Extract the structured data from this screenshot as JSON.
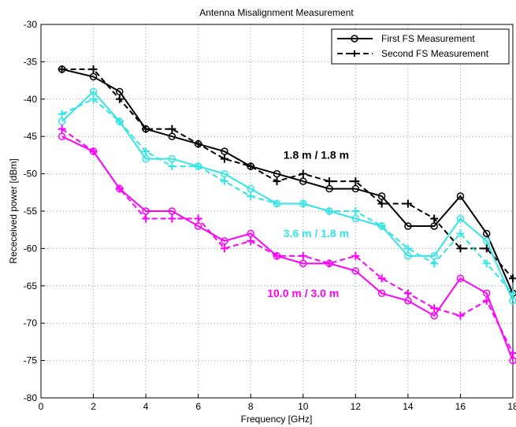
{
  "chart_data": {
    "type": "line",
    "title": "Antenna Misalignment Measurement",
    "xlabel": "Frequency [GHz]",
    "ylabel": "Receceived power [dBm]",
    "xlim": [
      0,
      18
    ],
    "ylim": [
      -80,
      -30
    ],
    "xticks": [
      0,
      2,
      4,
      6,
      8,
      10,
      12,
      14,
      16,
      18
    ],
    "yticks": [
      -30,
      -35,
      -40,
      -45,
      -50,
      -55,
      -60,
      -65,
      -70,
      -75,
      -80
    ],
    "grid": true,
    "legend_position": "top-right",
    "legend": [
      {
        "label": "First FS Measurement",
        "style": "solid",
        "marker": "circle"
      },
      {
        "label": "Second FS Measurement",
        "style": "dashed",
        "marker": "plus"
      }
    ],
    "series": [
      {
        "group": "1.8 m / 1.8 m",
        "color": "#000000",
        "style": "solid",
        "marker": "circle",
        "x": [
          0.8,
          2,
          3,
          4,
          5,
          6,
          7,
          8,
          9,
          10,
          11,
          12,
          13,
          14,
          15,
          16,
          17,
          18
        ],
        "y": [
          -36,
          -37,
          -39,
          -44,
          -45,
          -46,
          -47,
          -49,
          -50,
          -51,
          -52,
          -52,
          -53,
          -57,
          -57,
          -53,
          -58,
          -66
        ]
      },
      {
        "group": "1.8 m / 1.8 m",
        "color": "#000000",
        "style": "dashed",
        "marker": "plus",
        "x": [
          0.8,
          2,
          3,
          4,
          5,
          6,
          7,
          8,
          9,
          10,
          11,
          12,
          13,
          14,
          15,
          16,
          17,
          18
        ],
        "y": [
          -36,
          -36,
          -40,
          -44,
          -44,
          -46,
          -48,
          -49,
          -51,
          -50,
          -51,
          -51,
          -54,
          -54,
          -56,
          -60,
          -60,
          -64
        ]
      },
      {
        "group": "3.6 m / 1.8 m",
        "color": "#33e5e5",
        "style": "solid",
        "marker": "circle",
        "x": [
          0.8,
          2,
          3,
          4,
          5,
          6,
          7,
          8,
          9,
          10,
          11,
          12,
          13,
          14,
          15,
          16,
          17,
          18
        ],
        "y": [
          -43,
          -39,
          -43,
          -48,
          -48,
          -49,
          -50,
          -52,
          -54,
          -54,
          -55,
          -56,
          -57,
          -61,
          -61,
          -56,
          -59,
          -67
        ]
      },
      {
        "group": "3.6 m / 1.8 m",
        "color": "#33e5e5",
        "style": "dashed",
        "marker": "plus",
        "x": [
          0.8,
          2,
          3,
          4,
          5,
          6,
          7,
          8,
          9,
          10,
          11,
          12,
          13,
          14,
          15,
          16,
          17,
          18
        ],
        "y": [
          -42,
          -40,
          -43,
          -47,
          -49,
          -49,
          -51,
          -53,
          -54,
          -54,
          -55,
          -55,
          -57,
          -60,
          -62,
          -58,
          -62,
          -66
        ]
      },
      {
        "group": "10.0 m / 3.0 m",
        "color": "#ff00ff",
        "style": "solid",
        "marker": "circle",
        "x": [
          0.8,
          2,
          3,
          4,
          5,
          6,
          7,
          8,
          9,
          10,
          11,
          12,
          13,
          14,
          15,
          16,
          17,
          18
        ],
        "y": [
          -45,
          -47,
          -52,
          -55,
          -55,
          -57,
          -59,
          -58,
          -61,
          -62,
          -62,
          -63,
          -66,
          -67,
          -69,
          -64,
          -66,
          -75
        ]
      },
      {
        "group": "10.0 m / 3.0 m",
        "color": "#ff00ff",
        "style": "dashed",
        "marker": "plus",
        "x": [
          0.8,
          2,
          3,
          4,
          5,
          6,
          7,
          8,
          9,
          10,
          11,
          12,
          13,
          14,
          15,
          16,
          17,
          18
        ],
        "y": [
          -44,
          -47,
          -52,
          -56,
          -56,
          -56,
          -60,
          -59,
          -61,
          -61,
          -62,
          -61,
          -64,
          -66,
          -68,
          -69,
          -67,
          -74
        ]
      }
    ],
    "annotations": [
      {
        "text": "1.8 m / 1.8 m",
        "x": 10.5,
        "y": -48,
        "color": "#000000"
      },
      {
        "text": "3.6 m / 1.8 m",
        "x": 10.5,
        "y": -58.5,
        "color": "#33e5e5"
      },
      {
        "text": "10.0 m / 3.0 m",
        "x": 10.0,
        "y": -66.5,
        "color": "#ff00ff"
      }
    ]
  }
}
